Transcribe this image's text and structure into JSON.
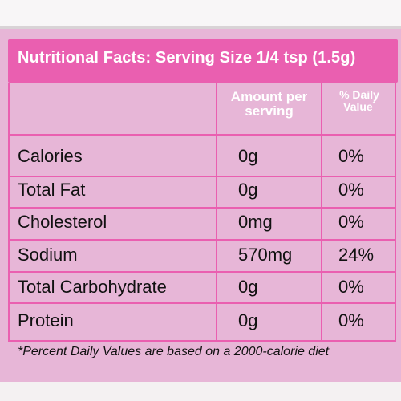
{
  "header": {
    "title": "Nutritional Facts: Serving Size 1/4 tsp (1.5g)"
  },
  "table": {
    "columns": {
      "amount_line1": "Amount per",
      "amount_line2": "serving",
      "daily_line1": "% Daily",
      "daily_line2": "Value",
      "daily_mark": "*"
    },
    "rows": [
      {
        "nutrient": "Calories",
        "amount": "0g",
        "daily": "0%"
      },
      {
        "nutrient": "Total Fat",
        "amount": "0g",
        "daily": "0%"
      },
      {
        "nutrient": "Cholesterol",
        "amount": "0mg",
        "daily": "0%"
      },
      {
        "nutrient": "Sodium",
        "amount": "570mg",
        "daily": "24%"
      },
      {
        "nutrient": "Total Carbohydrate",
        "amount": "0g",
        "daily": "0%"
      },
      {
        "nutrient": "Protein",
        "amount": "0g",
        "daily": "0%"
      }
    ]
  },
  "footnote": "*Percent Daily Values are based on a 2000-calorie diet",
  "colors": {
    "header": "#ea5fb0",
    "panel": "#e7b6d7",
    "text": "#111111"
  }
}
